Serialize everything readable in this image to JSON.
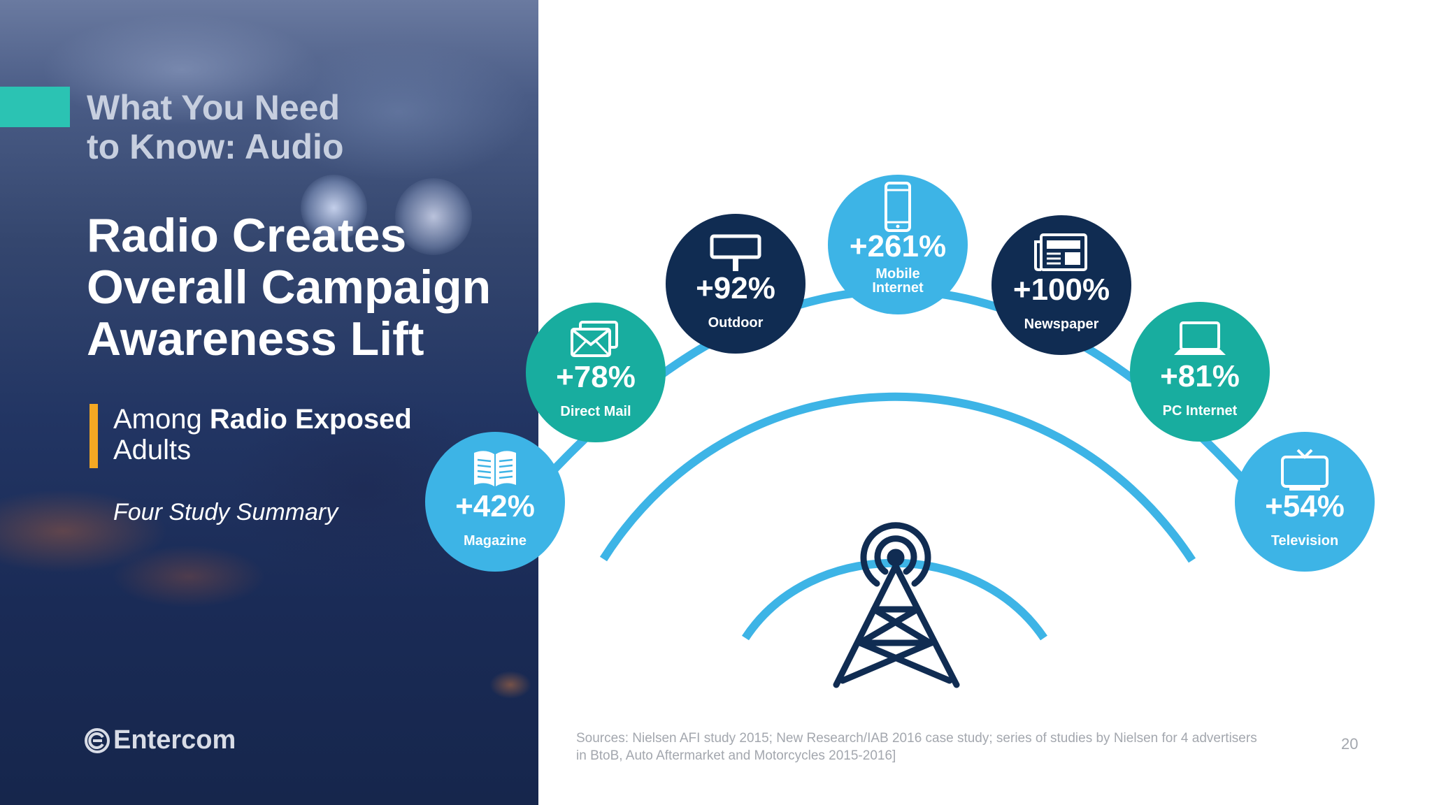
{
  "left": {
    "kicker_line1": "What You Need",
    "kicker_line2": "to Know: Audio",
    "headline_line1": "Radio Creates",
    "headline_line2": "Overall Campaign",
    "headline_line3": "Awareness Lift",
    "subhead_prefix": "Among ",
    "subhead_bold": "Radio Exposed",
    "subhead_suffix": "Adults",
    "summary": "Four Study Summary",
    "logo_text": "Entercom"
  },
  "colors": {
    "teal_accent": "#2bc3b3",
    "yellow_accent": "#f4a823",
    "light_blue": "#3db4e6",
    "teal": "#18ad9f",
    "navy": "#102c52",
    "arc_blue": "#3db4e6",
    "tower_navy": "#102c52"
  },
  "media": [
    {
      "value": "+42%",
      "label": "Magazine",
      "icon": "magazine-icon"
    },
    {
      "value": "+78%",
      "label": "Direct Mail",
      "icon": "mail-icon"
    },
    {
      "value": "+92%",
      "label": "Outdoor",
      "icon": "billboard-icon"
    },
    {
      "value": "+261%",
      "label_line1": "Mobile",
      "label_line2": "Internet",
      "icon": "mobile-phone-icon"
    },
    {
      "value": "+100%",
      "label": "Newspaper",
      "icon": "newspaper-icon"
    },
    {
      "value": "+81%",
      "label": "PC Internet",
      "icon": "laptop-icon"
    },
    {
      "value": "+54%",
      "label": "Television",
      "icon": "television-icon"
    }
  ],
  "footer": {
    "sources_line1": "Sources: Nielsen AFI study 2015; New Research/IAB 2016 case study; series of studies by Nielsen for 4 advertisers",
    "sources_line2": "in BtoB, Auto Aftermarket and Motorcycles 2015-2016]",
    "page_number": "20"
  }
}
